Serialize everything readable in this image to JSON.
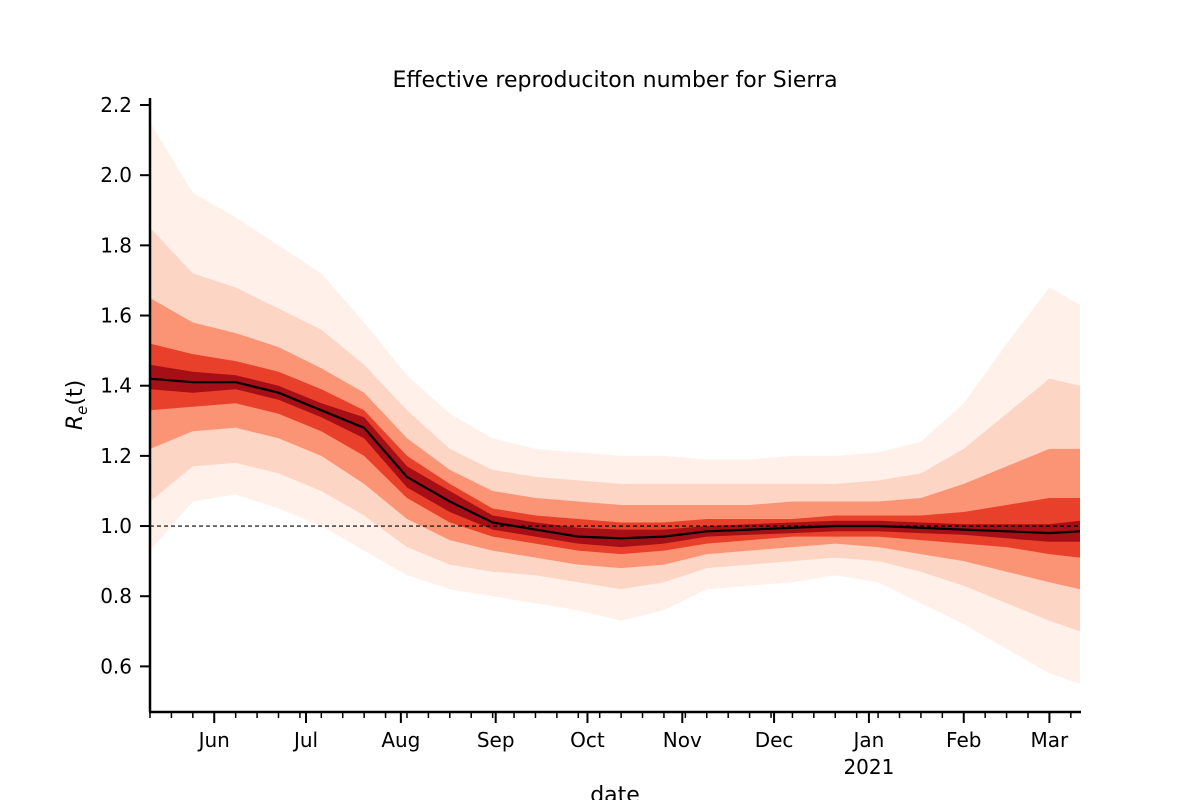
{
  "chart_data": {
    "type": "area",
    "title": "Effective reproduciton number for Sierra",
    "xlabel": "date",
    "ylabel_main": "R",
    "ylabel_sub": "e",
    "ylabel_arg": "(t)",
    "ylim": [
      0.47,
      2.22
    ],
    "yticks": [
      0.6,
      0.8,
      1.0,
      1.2,
      1.4,
      1.6,
      1.8,
      2.0,
      2.2
    ],
    "ytick_labels": [
      "0.6",
      "0.8",
      "1.0",
      "1.2",
      "1.4",
      "1.6",
      "1.8",
      "2.0",
      "2.2"
    ],
    "x_range": [
      "2020-05-11",
      "2021-03-11"
    ],
    "xticks_major": [
      {
        "date": "2020-06-01",
        "label": "Jun",
        "sublabel": ""
      },
      {
        "date": "2020-07-01",
        "label": "Jul",
        "sublabel": ""
      },
      {
        "date": "2020-08-01",
        "label": "Aug",
        "sublabel": ""
      },
      {
        "date": "2020-09-01",
        "label": "Sep",
        "sublabel": ""
      },
      {
        "date": "2020-10-01",
        "label": "Oct",
        "sublabel": ""
      },
      {
        "date": "2020-11-01",
        "label": "Nov",
        "sublabel": ""
      },
      {
        "date": "2020-12-01",
        "label": "Dec",
        "sublabel": ""
      },
      {
        "date": "2021-01-01",
        "label": "Jan",
        "sublabel": "2021"
      },
      {
        "date": "2021-02-01",
        "label": "Feb",
        "sublabel": ""
      },
      {
        "date": "2021-03-01",
        "label": "Mar",
        "sublabel": ""
      }
    ],
    "reference_line": {
      "y": 1.0,
      "style": "dashed"
    },
    "series": [
      {
        "kind": "median",
        "x": [
          "2020-05-11",
          "2020-05-25",
          "2020-06-08",
          "2020-06-22",
          "2020-07-06",
          "2020-07-20",
          "2020-08-03",
          "2020-08-17",
          "2020-08-31",
          "2020-09-14",
          "2020-09-28",
          "2020-10-12",
          "2020-10-26",
          "2020-11-09",
          "2020-11-23",
          "2020-12-07",
          "2020-12-21",
          "2021-01-04",
          "2021-01-18",
          "2021-02-01",
          "2021-02-15",
          "2021-03-01",
          "2021-03-11"
        ],
        "y": [
          1.42,
          1.41,
          1.41,
          1.38,
          1.33,
          1.28,
          1.14,
          1.07,
          1.01,
          0.99,
          0.97,
          0.965,
          0.97,
          0.985,
          0.99,
          0.995,
          1.0,
          1.0,
          0.995,
          0.99,
          0.985,
          0.98,
          0.985
        ]
      }
    ],
    "bands": [
      {
        "level": "98%",
        "color": "#fff0ea",
        "lower": [
          0.93,
          1.07,
          1.09,
          1.05,
          1.0,
          0.93,
          0.86,
          0.82,
          0.8,
          0.78,
          0.76,
          0.73,
          0.76,
          0.82,
          0.83,
          0.84,
          0.86,
          0.84,
          0.78,
          0.72,
          0.65,
          0.58,
          0.55
        ],
        "upper": [
          2.15,
          1.95,
          1.88,
          1.8,
          1.72,
          1.58,
          1.43,
          1.32,
          1.25,
          1.22,
          1.21,
          1.2,
          1.2,
          1.19,
          1.19,
          1.2,
          1.2,
          1.21,
          1.24,
          1.35,
          1.52,
          1.68,
          1.63
        ]
      },
      {
        "level": "90%",
        "color": "#fdd5c4",
        "lower": [
          1.07,
          1.17,
          1.18,
          1.15,
          1.1,
          1.03,
          0.94,
          0.89,
          0.87,
          0.86,
          0.84,
          0.82,
          0.84,
          0.88,
          0.89,
          0.9,
          0.91,
          0.9,
          0.87,
          0.83,
          0.78,
          0.73,
          0.7
        ],
        "upper": [
          1.85,
          1.72,
          1.68,
          1.62,
          1.56,
          1.46,
          1.33,
          1.22,
          1.16,
          1.14,
          1.13,
          1.12,
          1.12,
          1.12,
          1.12,
          1.12,
          1.12,
          1.13,
          1.15,
          1.22,
          1.32,
          1.42,
          1.4
        ]
      },
      {
        "level": "75%",
        "color": "#fb9474",
        "lower": [
          1.22,
          1.27,
          1.28,
          1.25,
          1.2,
          1.12,
          1.02,
          0.96,
          0.93,
          0.91,
          0.89,
          0.88,
          0.89,
          0.92,
          0.93,
          0.94,
          0.95,
          0.94,
          0.92,
          0.9,
          0.87,
          0.84,
          0.82
        ],
        "upper": [
          1.65,
          1.58,
          1.55,
          1.51,
          1.45,
          1.38,
          1.25,
          1.16,
          1.1,
          1.08,
          1.07,
          1.06,
          1.06,
          1.06,
          1.06,
          1.07,
          1.07,
          1.07,
          1.08,
          1.12,
          1.17,
          1.22,
          1.22
        ]
      },
      {
        "level": "50%",
        "color": "#e8402b",
        "lower": [
          1.33,
          1.34,
          1.35,
          1.32,
          1.27,
          1.2,
          1.08,
          1.01,
          0.97,
          0.95,
          0.93,
          0.92,
          0.93,
          0.95,
          0.96,
          0.97,
          0.97,
          0.97,
          0.96,
          0.95,
          0.94,
          0.92,
          0.91
        ],
        "upper": [
          1.52,
          1.49,
          1.47,
          1.44,
          1.39,
          1.33,
          1.2,
          1.12,
          1.05,
          1.03,
          1.02,
          1.01,
          1.01,
          1.02,
          1.02,
          1.02,
          1.03,
          1.03,
          1.03,
          1.04,
          1.06,
          1.08,
          1.08
        ]
      },
      {
        "level": "25%",
        "color": "#a50f15",
        "lower": [
          1.39,
          1.38,
          1.39,
          1.36,
          1.31,
          1.25,
          1.11,
          1.04,
          0.99,
          0.97,
          0.95,
          0.94,
          0.95,
          0.97,
          0.975,
          0.98,
          0.985,
          0.985,
          0.98,
          0.975,
          0.965,
          0.955,
          0.955
        ],
        "upper": [
          1.46,
          1.44,
          1.43,
          1.4,
          1.35,
          1.31,
          1.17,
          1.1,
          1.03,
          1.01,
          0.995,
          0.99,
          0.99,
          1.0,
          1.005,
          1.01,
          1.015,
          1.015,
          1.01,
          1.005,
          1.005,
          1.005,
          1.015
        ]
      }
    ]
  }
}
